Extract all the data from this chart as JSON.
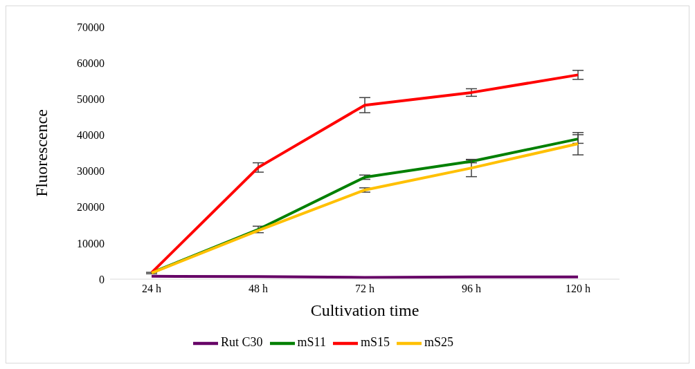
{
  "chart_data": {
    "type": "line",
    "xlabel": "Cultivation time",
    "ylabel": "Fluorescence",
    "categories": [
      "24 h",
      "48 h",
      "72 h",
      "96 h",
      "120 h"
    ],
    "ylim": [
      0,
      70000
    ],
    "yticks": [
      0,
      10000,
      20000,
      30000,
      40000,
      50000,
      60000,
      70000
    ],
    "grid": false,
    "legend": "bottom",
    "marker": "none",
    "line_style": "solid",
    "series": [
      {
        "name": "Rut C30",
        "color": "#660066",
        "values": [
          800,
          700,
          500,
          600,
          600
        ]
      },
      {
        "name": "mS11",
        "color": "#008000",
        "values": [
          1800,
          13800,
          28300,
          32700,
          38900
        ],
        "errors": [
          null,
          900,
          600,
          400,
          1200
        ]
      },
      {
        "name": "mS15",
        "color": "#ff0000",
        "values": [
          1800,
          31000,
          48300,
          51800,
          56700
        ],
        "errors": [
          null,
          1300,
          2100,
          1050,
          1250
        ]
      },
      {
        "name": "mS25",
        "color": "#ffc000",
        "values": [
          1700,
          13500,
          24750,
          30850,
          37600
        ],
        "errors": [
          200,
          null,
          600,
          2400,
          3100
        ]
      }
    ]
  }
}
